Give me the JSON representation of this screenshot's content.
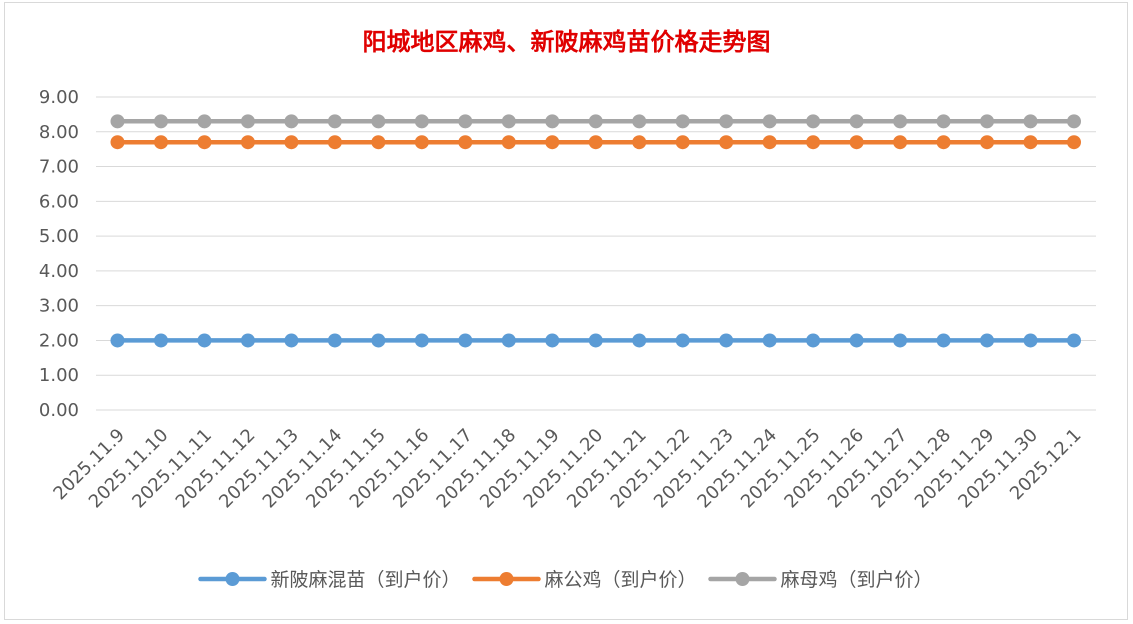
{
  "chart_data": {
    "type": "line",
    "title": "阳城地区麻鸡、新陂麻鸡苗价格走势图",
    "xlabel": "",
    "ylabel": "",
    "ylim": [
      0,
      9
    ],
    "yticks": [
      "0.00",
      "1.00",
      "2.00",
      "3.00",
      "4.00",
      "5.00",
      "6.00",
      "7.00",
      "8.00",
      "9.00"
    ],
    "grid": true,
    "legend_position": "bottom",
    "categories": [
      "2025.11.9",
      "2025.11.10",
      "2025.11.11",
      "2025.11.12",
      "2025.11.13",
      "2025.11.14",
      "2025.11.15",
      "2025.11.16",
      "2025.11.17",
      "2025.11.18",
      "2025.11.19",
      "2025.11.20",
      "2025.11.21",
      "2025.11.22",
      "2025.11.23",
      "2025.11.24",
      "2025.11.25",
      "2025.11.26",
      "2025.11.27",
      "2025.11.28",
      "2025.11.29",
      "2025.11.30",
      "2025.12.1"
    ],
    "series": [
      {
        "name": "新陂麻混苗（到户价）",
        "color": "#5b9bd5",
        "values": [
          2.0,
          2.0,
          2.0,
          2.0,
          2.0,
          2.0,
          2.0,
          2.0,
          2.0,
          2.0,
          2.0,
          2.0,
          2.0,
          2.0,
          2.0,
          2.0,
          2.0,
          2.0,
          2.0,
          2.0,
          2.0,
          2.0,
          2.0
        ]
      },
      {
        "name": "麻公鸡（到户价）",
        "color": "#ed7d31",
        "values": [
          7.7,
          7.7,
          7.7,
          7.7,
          7.7,
          7.7,
          7.7,
          7.7,
          7.7,
          7.7,
          7.7,
          7.7,
          7.7,
          7.7,
          7.7,
          7.7,
          7.7,
          7.7,
          7.7,
          7.7,
          7.7,
          7.7,
          7.7
        ]
      },
      {
        "name": "麻母鸡（到户价）",
        "color": "#a5a5a5",
        "values": [
          8.3,
          8.3,
          8.3,
          8.3,
          8.3,
          8.3,
          8.3,
          8.3,
          8.3,
          8.3,
          8.3,
          8.3,
          8.3,
          8.3,
          8.3,
          8.3,
          8.3,
          8.3,
          8.3,
          8.3,
          8.3,
          8.3,
          8.3
        ]
      }
    ]
  }
}
